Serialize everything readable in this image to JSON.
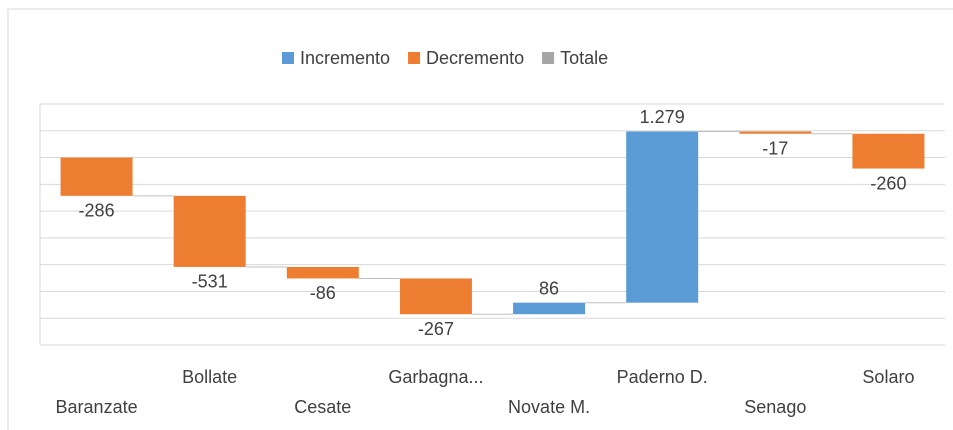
{
  "chart_data": {
    "type": "waterfall",
    "legend": [
      {
        "name": "Incremento",
        "color": "#5b9bd5"
      },
      {
        "name": "Decremento",
        "color": "#ed7d31"
      },
      {
        "name": "Totale",
        "color": "#a5a5a5"
      }
    ],
    "categories": [
      "Baranzate",
      "Bollate",
      "Cesate",
      "Garbagna...",
      "Novate M.",
      "Paderno D.",
      "Senago",
      "Solaro"
    ],
    "values": [
      -286,
      -531,
      -86,
      -267,
      86,
      1279,
      -17,
      -260
    ],
    "value_labels": [
      "-286",
      "-531",
      "-86",
      "-267",
      "86",
      "1.279",
      "-17",
      "-260"
    ],
    "ylim": [
      -1400,
      400
    ],
    "yticks": [
      -1400,
      -1200,
      -1000,
      -800,
      -600,
      -400,
      -200,
      0,
      200,
      400
    ],
    "grid": true
  }
}
